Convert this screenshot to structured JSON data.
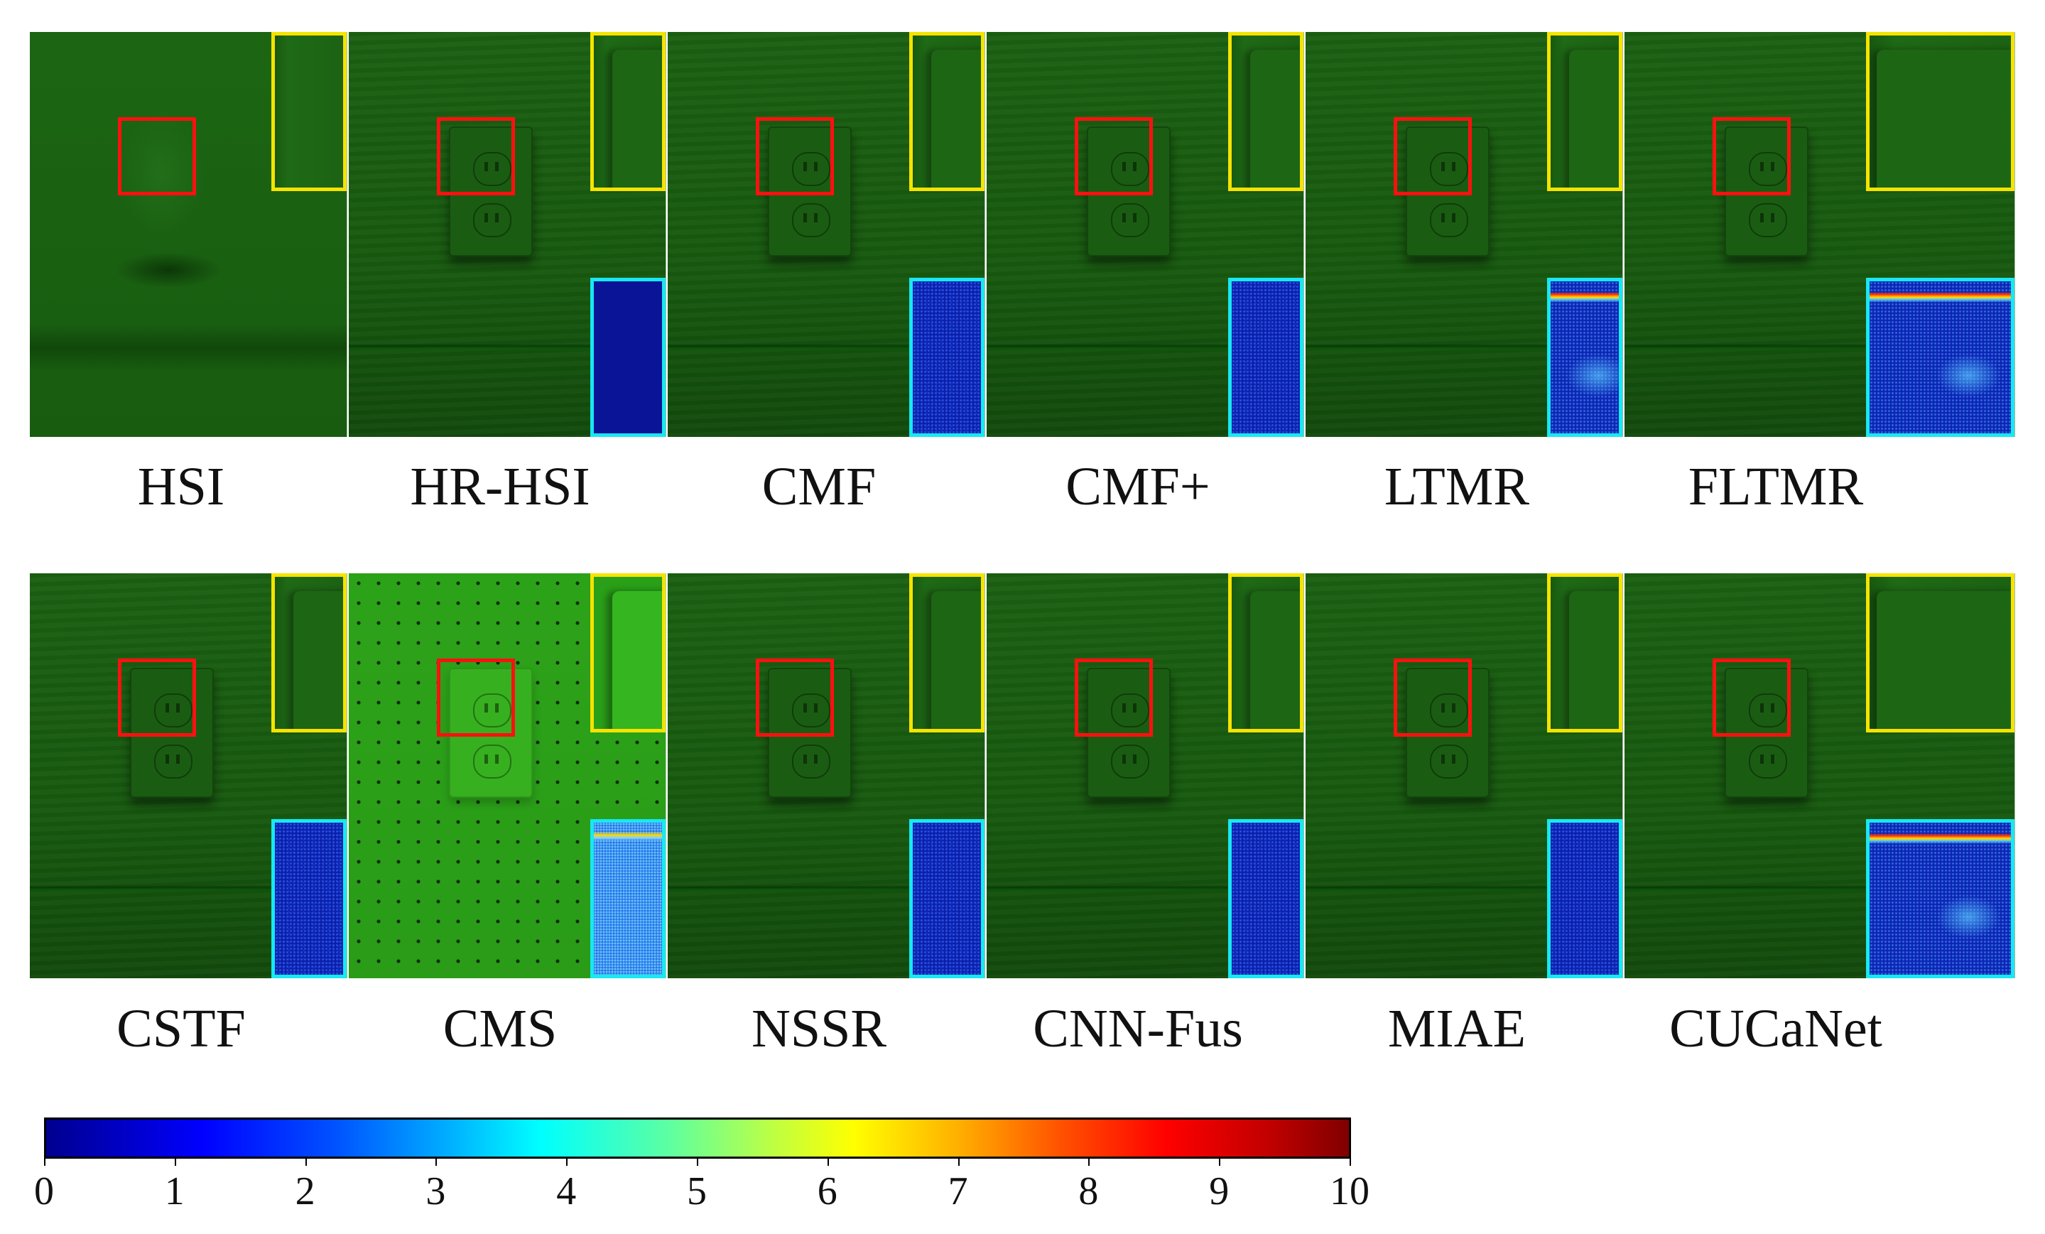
{
  "row1": {
    "panels": [
      {
        "label": "HSI",
        "style": "blurry",
        "residual": "none"
      },
      {
        "label": "HR-HSI",
        "style": "normal",
        "residual": "solid"
      },
      {
        "label": "CMF",
        "style": "normal",
        "residual": "noise"
      },
      {
        "label": "CMF+",
        "style": "normal",
        "residual": "noise"
      },
      {
        "label": "LTMR",
        "style": "normal",
        "residual": "hot"
      },
      {
        "label": "FLTMR",
        "style": "normal",
        "residual": "hot"
      }
    ]
  },
  "row2": {
    "panels": [
      {
        "label": "CSTF",
        "style": "normal",
        "residual": "noise"
      },
      {
        "label": "CMS",
        "style": "pegboard",
        "residual": "cms"
      },
      {
        "label": "NSSR",
        "style": "normal",
        "residual": "noise"
      },
      {
        "label": "CNN-Fus",
        "style": "normal",
        "residual": "noise"
      },
      {
        "label": "MIAE",
        "style": "normal",
        "residual": "noise"
      },
      {
        "label": "CUCaNet",
        "style": "normal",
        "residual": "hot"
      }
    ]
  },
  "colorbar": {
    "min": 0,
    "max": 10,
    "ticks": [
      "0",
      "1",
      "2",
      "3",
      "4",
      "5",
      "6",
      "7",
      "8",
      "9",
      "10"
    ],
    "colors": {
      "low": "#00008f",
      "mid": "#ffff00",
      "high": "#800000"
    }
  },
  "colors": {
    "zoom_box": "#ff1010",
    "image_inset_border": "#f6e300",
    "residual_inset_border": "#18e8f2"
  }
}
